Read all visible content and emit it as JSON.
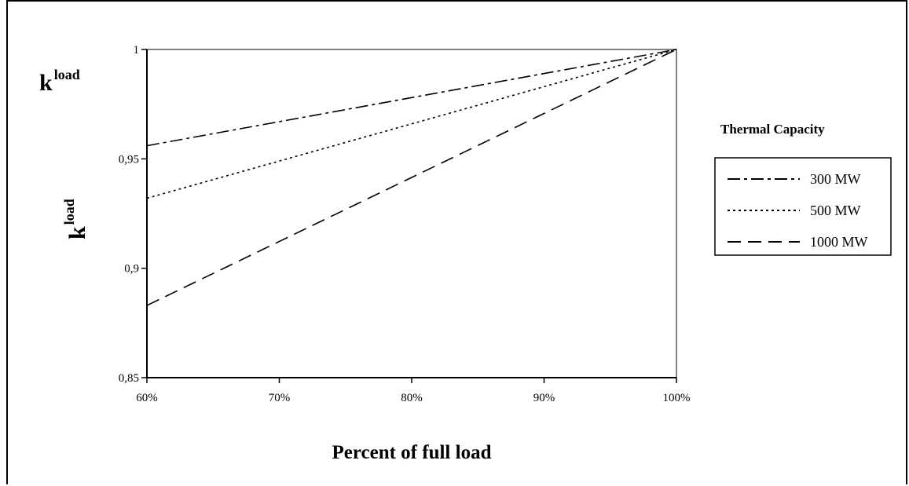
{
  "chart_data": {
    "type": "line",
    "corner_label": {
      "base": "k",
      "superscript": "load"
    },
    "ylabel": {
      "base": "k",
      "superscript": "load"
    },
    "xlabel": "Percent of full load",
    "legend_title": "Thermal Capacity",
    "x": [
      60,
      70,
      80,
      90,
      100
    ],
    "x_tick_labels": [
      "60%",
      "70%",
      "80%",
      "90%",
      "100%"
    ],
    "xlim": [
      60,
      100
    ],
    "ylim": [
      0.85,
      1
    ],
    "y_ticks": [
      0.85,
      0.9,
      0.95,
      1
    ],
    "y_tick_labels": [
      "0,85",
      "0,9",
      "0,95",
      "1"
    ],
    "grid": false,
    "legend_position": "right",
    "series": [
      {
        "name": "300 MW",
        "dash": "dash-dot",
        "x": [
          60,
          100
        ],
        "y": [
          0.956,
          1.0
        ]
      },
      {
        "name": "500 MW",
        "dash": "dotted",
        "x": [
          60,
          100
        ],
        "y": [
          0.932,
          1.0
        ]
      },
      {
        "name": "1000 MW",
        "dash": "dashed",
        "x": [
          60,
          100
        ],
        "y": [
          0.883,
          1.0
        ]
      }
    ]
  }
}
